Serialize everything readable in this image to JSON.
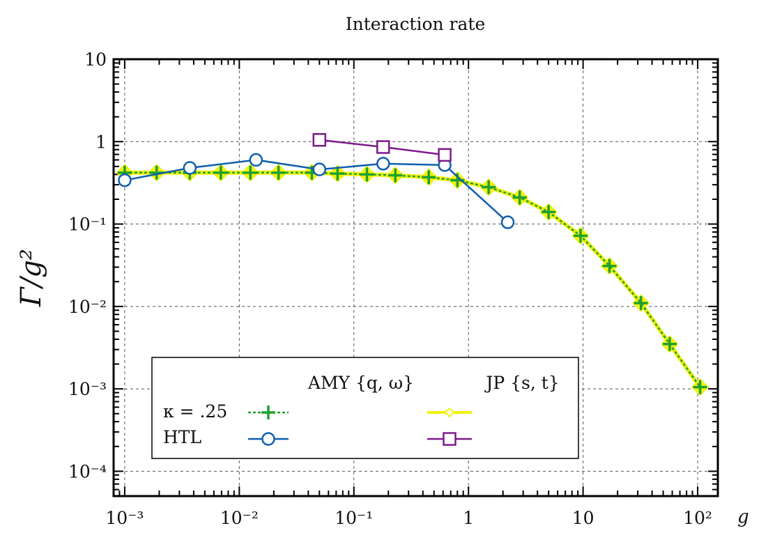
{
  "chart_data": {
    "type": "line",
    "title": "Interaction rate",
    "xlabel": "g",
    "ylabel": "Γ/g²",
    "xscale": "log",
    "yscale": "log",
    "xlim": [
      0.0008,
      150
    ],
    "ylim": [
      5e-05,
      10
    ],
    "grid": true,
    "x_ticks": [
      "10⁻³",
      "10⁻²",
      "10⁻¹",
      "1",
      "10",
      "10²"
    ],
    "x_tick_values": [
      0.001,
      0.01,
      0.1,
      1,
      10,
      100
    ],
    "y_ticks": [
      "10⁻⁴",
      "10⁻³",
      "10⁻²",
      "10⁻¹",
      "1",
      "10"
    ],
    "y_tick_values": [
      0.0001,
      0.001,
      0.01,
      0.1,
      1,
      10
    ],
    "legend": {
      "placement": "lower-left",
      "col_headers": [
        "AMY {q, ω}",
        "JP {s, t}"
      ],
      "row_labels": [
        "κ = .25",
        "HTL"
      ]
    },
    "series": [
      {
        "name": "AMY κ = .25",
        "color": "#1fa12f",
        "marker": "plus",
        "dash": true,
        "x": [
          0.001,
          0.0019,
          0.0037,
          0.0069,
          0.0125,
          0.022,
          0.043,
          0.072,
          0.13,
          0.23,
          0.45,
          0.8,
          1.5,
          2.8,
          5.0,
          9.5,
          17,
          32,
          57,
          105
        ],
        "y": [
          0.42,
          0.42,
          0.42,
          0.42,
          0.42,
          0.42,
          0.42,
          0.41,
          0.4,
          0.39,
          0.37,
          0.34,
          0.28,
          0.21,
          0.14,
          0.072,
          0.031,
          0.011,
          0.0035,
          0.00105
        ]
      },
      {
        "name": "JP κ = .25",
        "color": "#f2f20f",
        "marker": "diamond",
        "dash": false,
        "x": [
          0.001,
          0.0019,
          0.0037,
          0.0069,
          0.0125,
          0.022,
          0.043,
          0.072,
          0.13,
          0.23,
          0.45,
          0.8,
          1.5,
          2.8,
          5.0,
          9.5,
          17,
          32,
          57,
          105
        ],
        "y": [
          0.42,
          0.42,
          0.42,
          0.42,
          0.42,
          0.42,
          0.42,
          0.41,
          0.4,
          0.39,
          0.37,
          0.34,
          0.28,
          0.21,
          0.14,
          0.072,
          0.031,
          0.011,
          0.0035,
          0.00105
        ]
      },
      {
        "name": "AMY HTL",
        "color": "#0f5fad",
        "marker": "circle",
        "dash": false,
        "x": [
          0.001,
          0.0037,
          0.014,
          0.05,
          0.18,
          0.62,
          2.2
        ],
        "y": [
          0.34,
          0.48,
          0.6,
          0.46,
          0.54,
          0.52,
          0.105
        ]
      },
      {
        "name": "JP HTL",
        "color": "#7c1a8c",
        "marker": "square",
        "dash": false,
        "x": [
          0.05,
          0.18,
          0.62
        ],
        "y": [
          1.05,
          0.86,
          0.69
        ]
      }
    ]
  }
}
